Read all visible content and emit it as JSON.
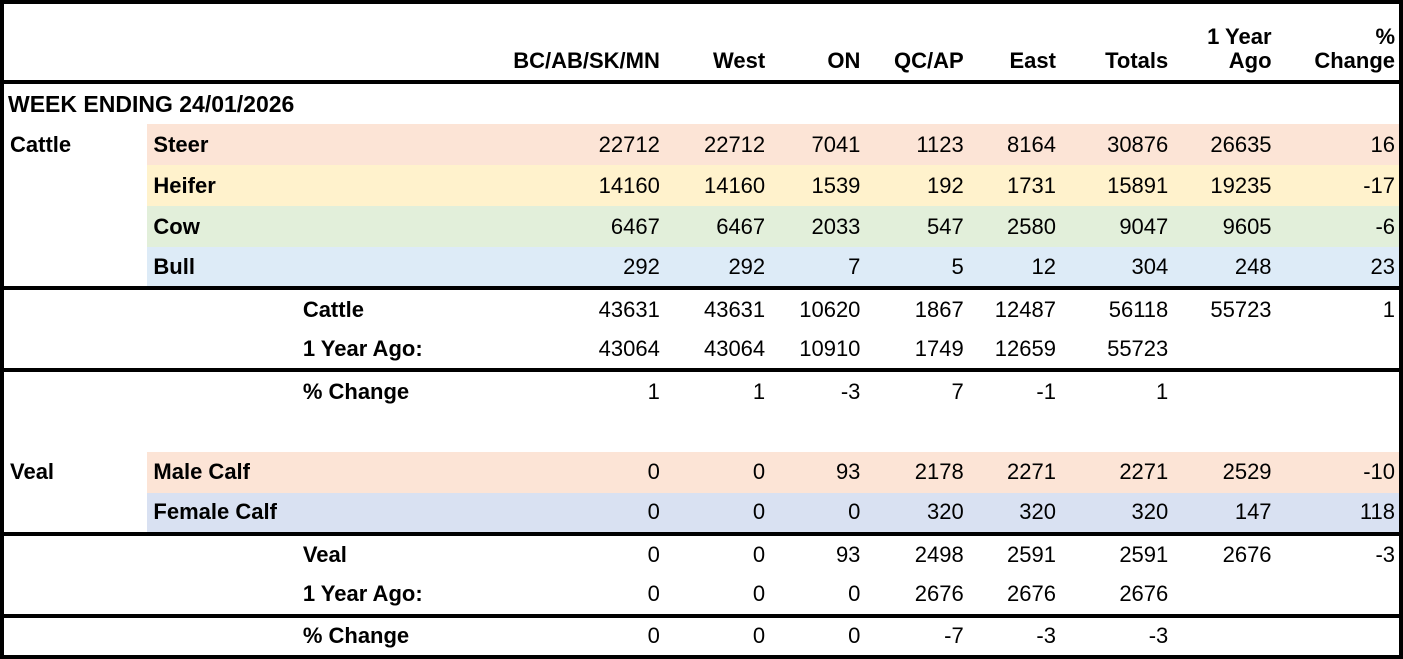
{
  "table": {
    "headers": [
      "BC/AB/SK/MN",
      "West",
      "ON",
      "QC/AP",
      "East",
      "Totals",
      "1 Year\nAgo",
      "%\nChange"
    ],
    "row_colors": {
      "peach": "#fce4d6",
      "yellow": "#fff2cc",
      "green": "#e2efda",
      "blue": "#ddebf7",
      "lavender": "#d9e1f2"
    },
    "rows": [
      {
        "id": "week-ending",
        "type": "week",
        "label": "WEEK ENDING 24/01/2026"
      },
      {
        "id": "steer",
        "group": "Cattle",
        "label": "Steer",
        "bg": "peach",
        "values": [
          "22712",
          "22712",
          "7041",
          "1123",
          "8164",
          "30876",
          "26635",
          "16"
        ]
      },
      {
        "id": "heifer",
        "group": "",
        "label": "Heifer",
        "bg": "yellow",
        "values": [
          "14160",
          "14160",
          "1539",
          "192",
          "1731",
          "15891",
          "19235",
          "-17"
        ]
      },
      {
        "id": "cow",
        "group": "",
        "label": "Cow",
        "bg": "green",
        "values": [
          "6467",
          "6467",
          "2033",
          "547",
          "2580",
          "9047",
          "9605",
          "-6"
        ]
      },
      {
        "id": "bull",
        "group": "",
        "label": "Bull",
        "bg": "blue",
        "border_bottom": true,
        "values": [
          "292",
          "292",
          "7",
          "5",
          "12",
          "304",
          "248",
          "23"
        ]
      },
      {
        "id": "cattle-total",
        "summary": "Cattle",
        "values": [
          "43631",
          "43631",
          "10620",
          "1867",
          "12487",
          "56118",
          "55723",
          "1"
        ]
      },
      {
        "id": "cattle-year-ago",
        "summary": "1 Year Ago:",
        "border_bottom": true,
        "values": [
          "43064",
          "43064",
          "10910",
          "1749",
          "12659",
          "55723",
          "",
          ""
        ]
      },
      {
        "id": "cattle-pct-change",
        "summary": "% Change",
        "values": [
          "1",
          "1",
          "-3",
          "7",
          "-1",
          "1",
          "",
          ""
        ]
      },
      {
        "id": "spacer",
        "type": "spacer"
      },
      {
        "id": "male-calf",
        "group": "Veal",
        "label": "Male Calf",
        "bg": "peach",
        "values": [
          "0",
          "0",
          "93",
          "2178",
          "2271",
          "2271",
          "2529",
          "-10"
        ]
      },
      {
        "id": "female-calf",
        "group": "",
        "label": "Female Calf",
        "bg": "lavender",
        "border_bottom": true,
        "values": [
          "0",
          "0",
          "0",
          "320",
          "320",
          "320",
          "147",
          "118"
        ]
      },
      {
        "id": "veal-total",
        "summary": "Veal",
        "values": [
          "0",
          "0",
          "93",
          "2498",
          "2591",
          "2591",
          "2676",
          "-3"
        ]
      },
      {
        "id": "veal-year-ago",
        "summary": "1 Year Ago:",
        "border_bottom": true,
        "values": [
          "0",
          "0",
          "0",
          "2676",
          "2676",
          "2676",
          "",
          ""
        ]
      },
      {
        "id": "veal-pct-change",
        "summary": "% Change",
        "values": [
          "0",
          "0",
          "0",
          "-7",
          "-3",
          "-3",
          "",
          ""
        ]
      }
    ]
  }
}
